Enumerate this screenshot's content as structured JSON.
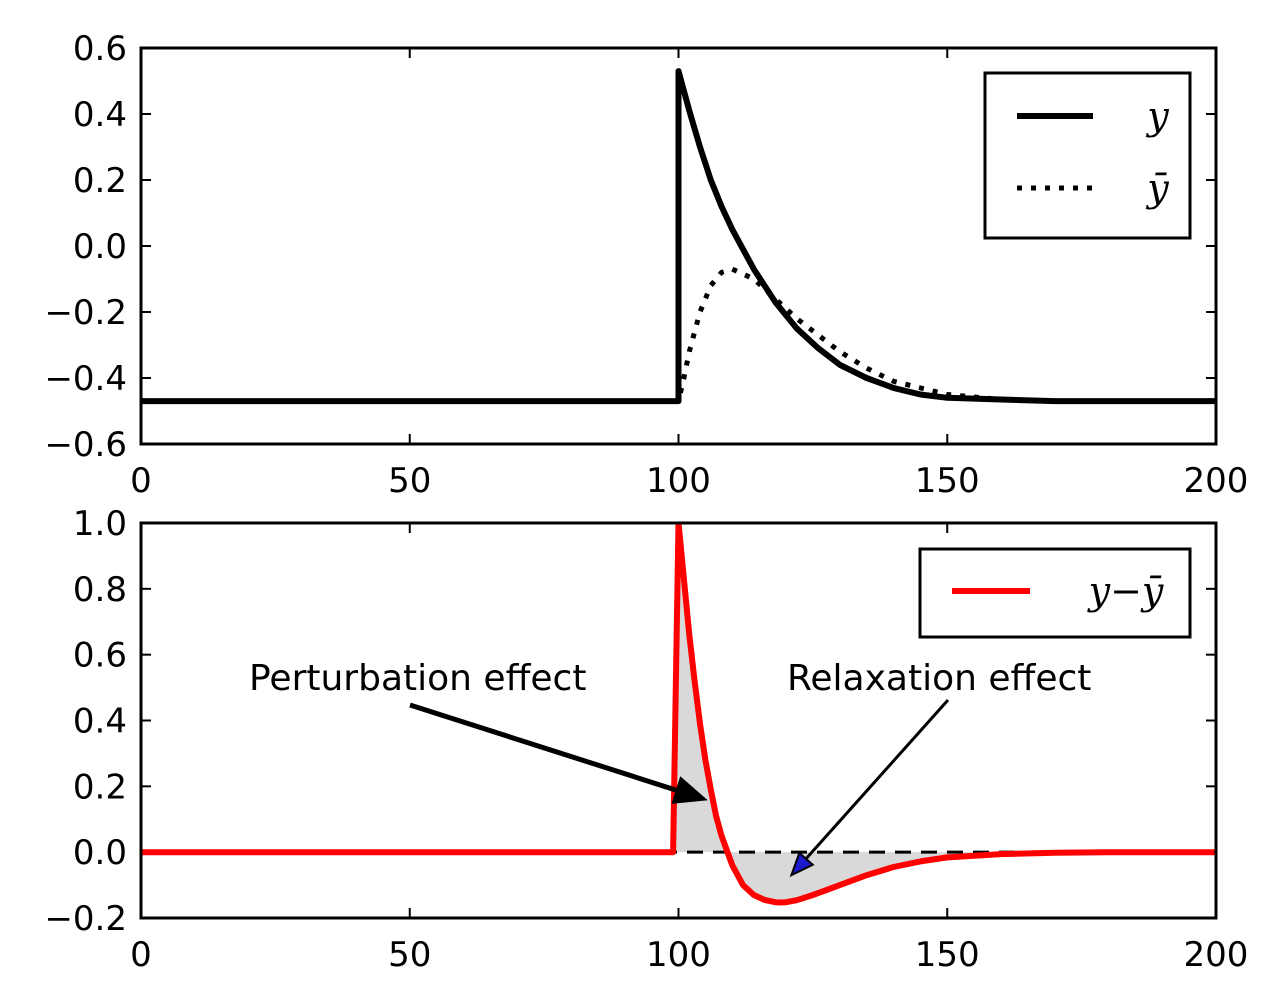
{
  "chart_data": [
    {
      "type": "line",
      "xlim": [
        0,
        200
      ],
      "ylim": [
        -0.6,
        0.6
      ],
      "xticks": [
        0,
        50,
        100,
        150,
        200
      ],
      "xtick_labels": [
        "0",
        "50",
        "100",
        "150",
        "200"
      ],
      "yticks": [
        0.6,
        0.4,
        0.2,
        0.0,
        -0.2,
        -0.4,
        -0.6
      ],
      "ytick_labels": [
        "0.6",
        "0.4",
        "0.2",
        "0.0",
        "−0.2",
        "−0.4",
        "−0.6"
      ],
      "grid": false,
      "legend_position": "top-right",
      "series": [
        {
          "name": "y",
          "style": "solid",
          "color": "#000000",
          "x": [
            0,
            100,
            100,
            102,
            104,
            106,
            108,
            110,
            114,
            118,
            122,
            126,
            130,
            135,
            140,
            145,
            150,
            160,
            170,
            180,
            200
          ],
          "y": [
            -0.47,
            -0.47,
            0.53,
            0.41,
            0.3,
            0.2,
            0.12,
            0.05,
            -0.07,
            -0.17,
            -0.25,
            -0.31,
            -0.36,
            -0.4,
            -0.43,
            -0.45,
            -0.46,
            -0.465,
            -0.47,
            -0.47,
            -0.47
          ]
        },
        {
          "name": "ȳ",
          "style": "dotted",
          "color": "#000000",
          "x": [
            0,
            100,
            101,
            102,
            104,
            106,
            108,
            110,
            114,
            118,
            122,
            126,
            130,
            135,
            140,
            150,
            160,
            170,
            180,
            200
          ],
          "y": [
            -0.47,
            -0.47,
            -0.4,
            -0.32,
            -0.2,
            -0.12,
            -0.08,
            -0.07,
            -0.1,
            -0.16,
            -0.22,
            -0.27,
            -0.32,
            -0.37,
            -0.41,
            -0.45,
            -0.465,
            -0.47,
            -0.47,
            -0.47
          ]
        }
      ]
    },
    {
      "type": "line",
      "xlim": [
        0,
        200
      ],
      "ylim": [
        -0.2,
        1.0
      ],
      "xticks": [
        0,
        50,
        100,
        150,
        200
      ],
      "xtick_labels": [
        "0",
        "50",
        "100",
        "150",
        "200"
      ],
      "yticks": [
        1.0,
        0.8,
        0.6,
        0.4,
        0.2,
        0.0,
        -0.2
      ],
      "ytick_labels": [
        "1.0",
        "0.8",
        "0.6",
        "0.4",
        "0.2",
        "0.0",
        "−0.2"
      ],
      "grid": false,
      "legend_position": "top-right",
      "reference_line": {
        "y": 0.0,
        "style": "dashed",
        "color": "#000000"
      },
      "fill_between_zero": {
        "color": "#d9d9d9"
      },
      "series": [
        {
          "name": "y−ȳ",
          "style": "solid",
          "color": "#ff0000",
          "x": [
            0,
            99,
            100,
            101,
            102,
            103,
            104,
            105,
            106,
            107,
            108,
            110,
            112,
            114,
            116,
            118,
            119,
            120,
            122,
            125,
            130,
            135,
            140,
            145,
            150,
            160,
            170,
            180,
            200
          ],
          "y": [
            0,
            0,
            1.0,
            0.83,
            0.66,
            0.52,
            0.39,
            0.28,
            0.19,
            0.11,
            0.05,
            -0.04,
            -0.1,
            -0.13,
            -0.145,
            -0.152,
            -0.153,
            -0.152,
            -0.146,
            -0.13,
            -0.1,
            -0.07,
            -0.045,
            -0.028,
            -0.016,
            -0.006,
            -0.002,
            0,
            0
          ]
        }
      ],
      "annotations": [
        {
          "text": "Perturbation effect",
          "point": [
            105,
            0.16
          ]
        },
        {
          "text": "Relaxation effect",
          "point": [
            121,
            -0.07
          ]
        }
      ]
    }
  ],
  "colors": {
    "line": "#000000",
    "diff": "#ff0000",
    "fill": "#d9d9d9"
  }
}
